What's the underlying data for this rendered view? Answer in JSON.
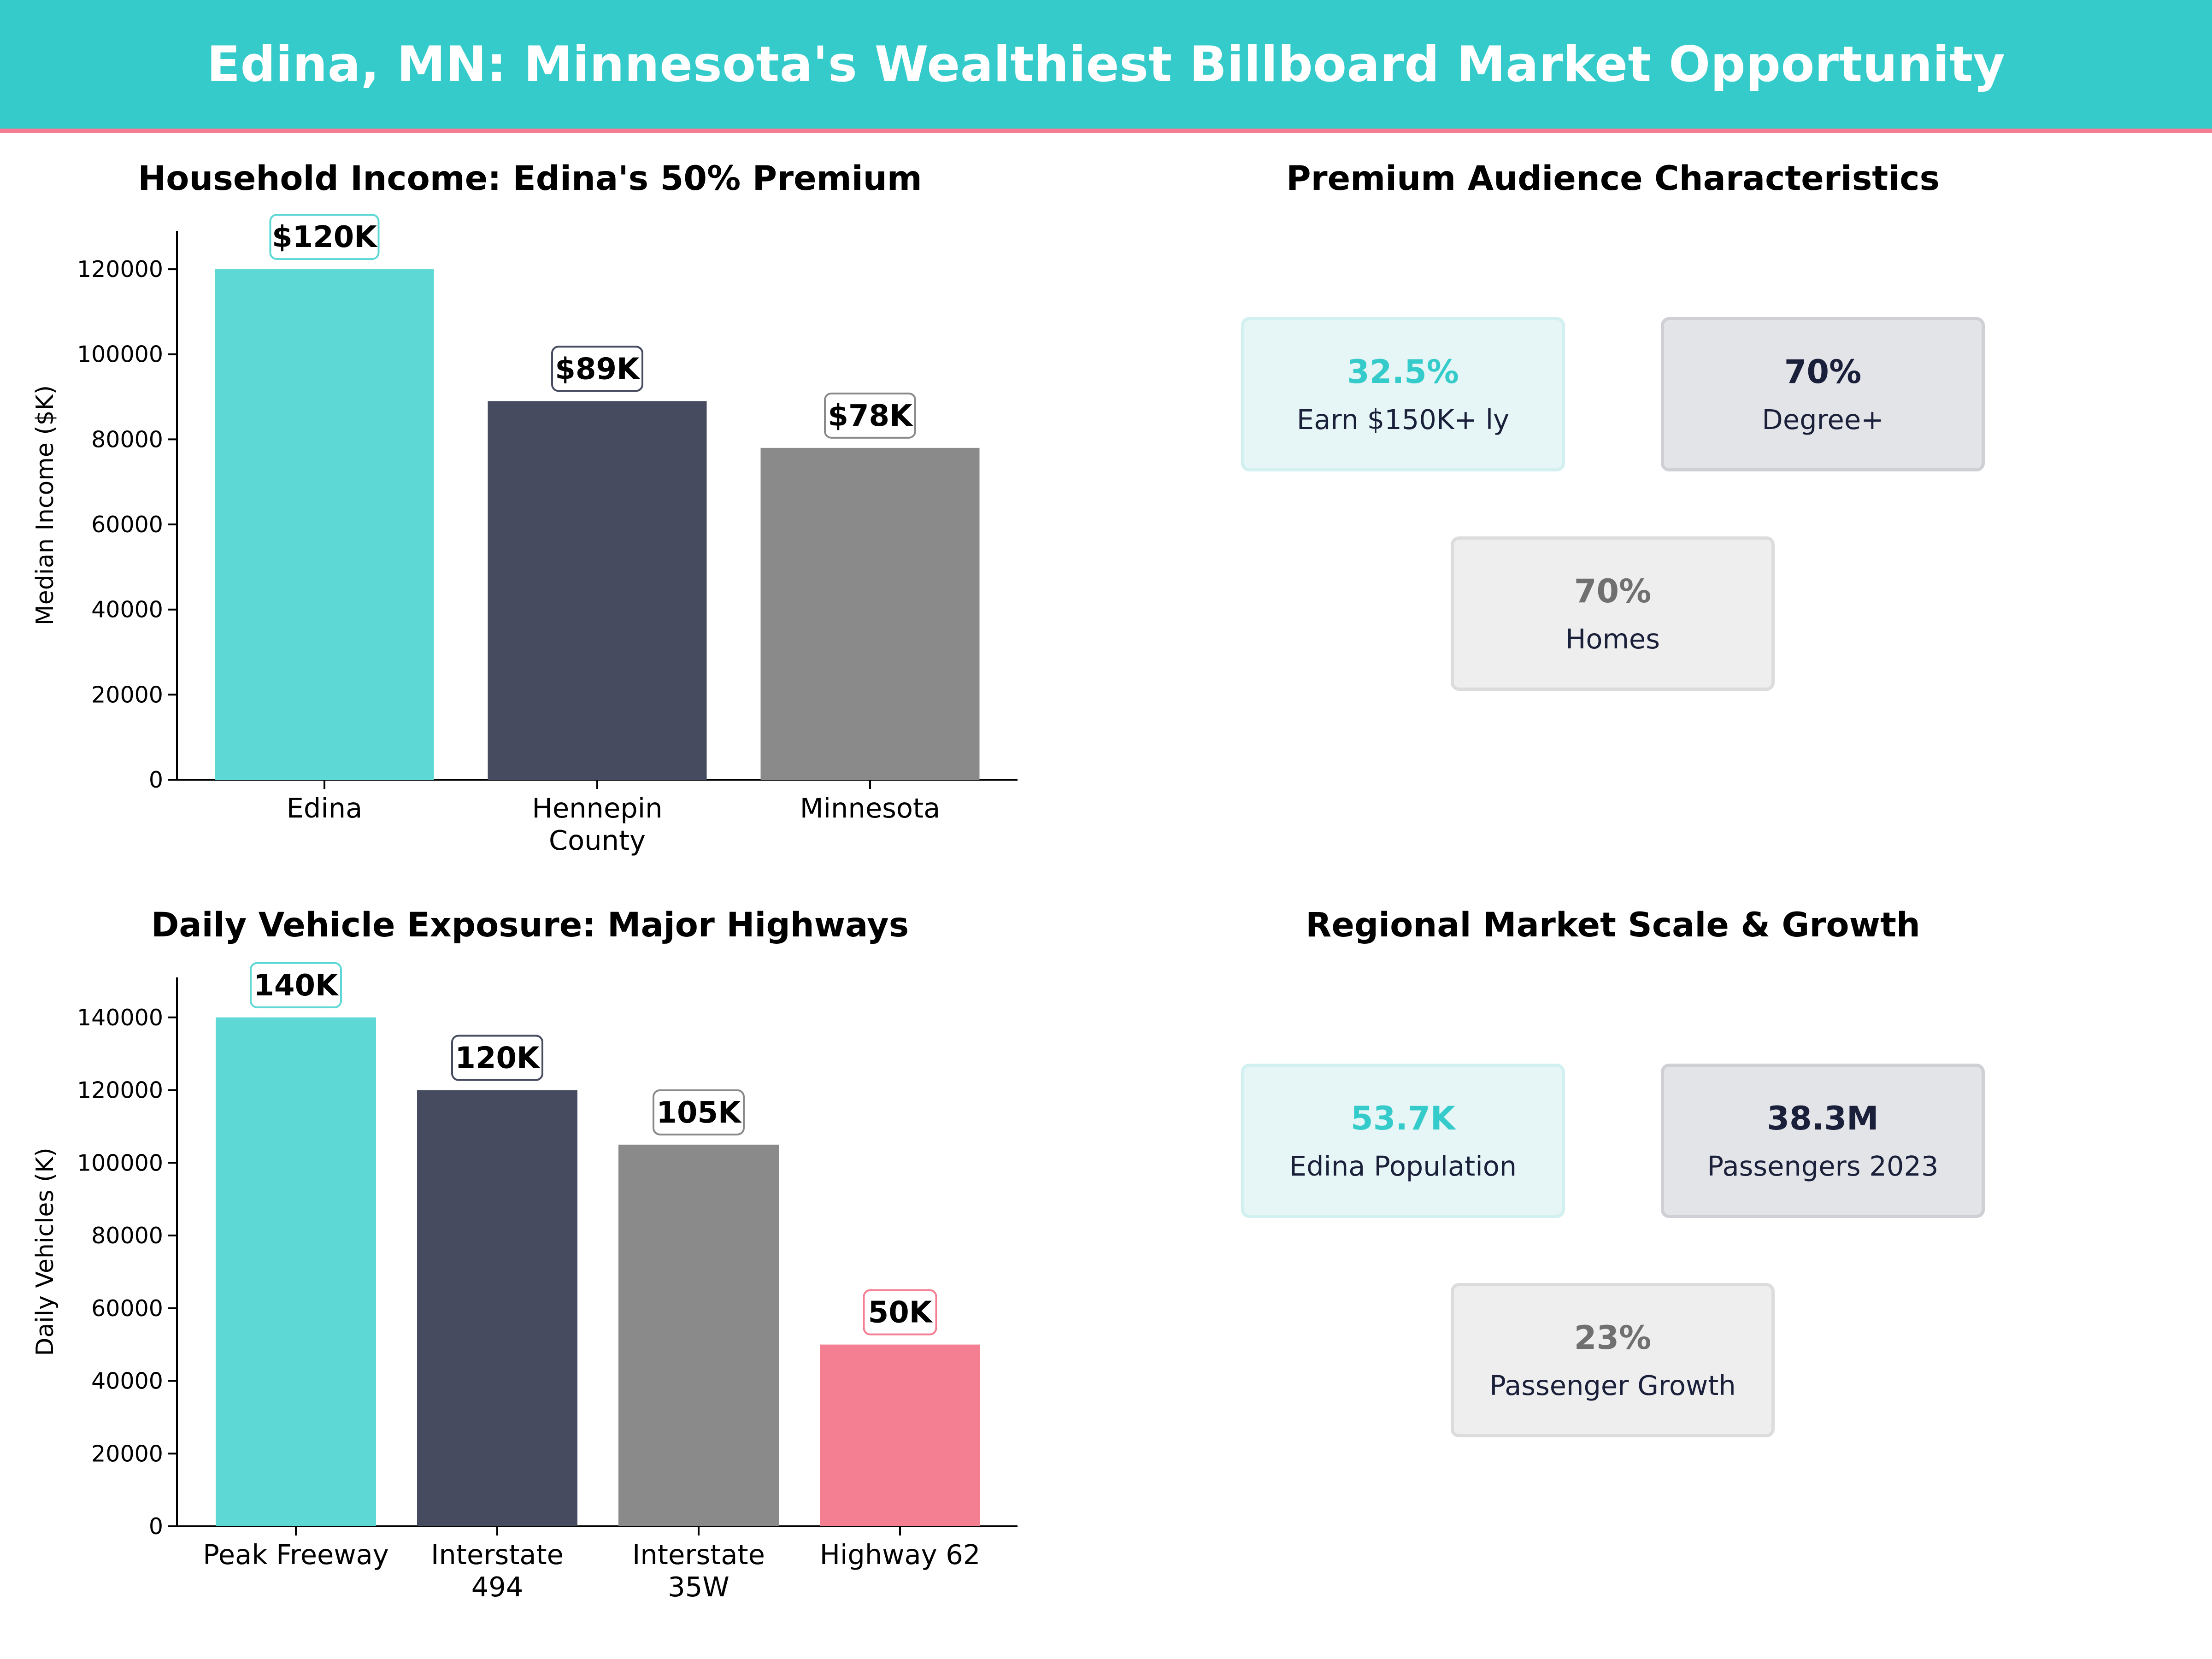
{
  "header": {
    "title": "Edina, MN: Minnesota's Wealthiest Billboard Market Opportunity"
  },
  "colors": {
    "teal": "#5dd8d4",
    "navy": "#464b60",
    "gray": "#8a8a8a",
    "pink": "#f47e92",
    "banner": "#36cbcb",
    "banner_accent": "#f47b91"
  },
  "chart_data": [
    {
      "type": "bar",
      "title": "Household Income: Edina's 50% Premium",
      "categories": [
        "Edina",
        "Hennepin\nCounty",
        "Minnesota"
      ],
      "values": [
        120000,
        89000,
        78000
      ],
      "data_labels": [
        "$120K",
        "$89K",
        "$78K"
      ],
      "bar_colors": [
        "#5dd8d4",
        "#464b60",
        "#8a8a8a"
      ],
      "label_border_colors": [
        "#5dd8d4",
        "#464b60",
        "#8a8a8a"
      ],
      "xlabel": "",
      "ylabel": "Median Income ($K)",
      "ylim": [
        0,
        129000
      ],
      "yticks": [
        0,
        20000,
        40000,
        60000,
        80000,
        100000,
        120000
      ],
      "grid": false
    },
    {
      "type": "bar",
      "title": "Daily Vehicle Exposure: Major Highways",
      "categories": [
        "Peak Freeway",
        "Interstate\n494",
        "Interstate\n35W",
        "Highway 62"
      ],
      "values": [
        140000,
        120000,
        105000,
        50000
      ],
      "data_labels": [
        "140K",
        "120K",
        "105K",
        "50K"
      ],
      "bar_colors": [
        "#5dd8d4",
        "#464b60",
        "#8a8a8a",
        "#f47e92"
      ],
      "label_border_colors": [
        "#5dd8d4",
        "#464b60",
        "#8a8a8a",
        "#f47e92"
      ],
      "xlabel": "",
      "ylabel": "Daily Vehicles (K)",
      "ylim": [
        0,
        151000
      ],
      "yticks": [
        0,
        20000,
        40000,
        60000,
        80000,
        100000,
        120000,
        140000
      ],
      "grid": false
    }
  ],
  "audience": {
    "title": "Premium Audience Characteristics",
    "cards": [
      {
        "value": "32.5%",
        "label": "Earn $150K+ ly",
        "value_color": "#36cbcb",
        "bg": "#e6f6f6",
        "border": "#d3f0f0"
      },
      {
        "value": "70%",
        "label": "Degree+",
        "value_color": "#1a1f3a",
        "bg": "#e3e4e8",
        "border": "#cfd0d5"
      },
      {
        "value": "70%",
        "label": "Homes",
        "value_color": "#707070",
        "bg": "#eeeeee",
        "border": "#dcdcdc"
      }
    ]
  },
  "market": {
    "title": "Regional Market Scale & Growth",
    "cards": [
      {
        "value": "53.7K",
        "label": "Edina Population",
        "value_color": "#36cbcb",
        "bg": "#e6f6f6",
        "border": "#d3f0f0"
      },
      {
        "value": "38.3M",
        "label": "Passengers 2023",
        "value_color": "#1a1f3a",
        "bg": "#e3e4e8",
        "border": "#cfd0d5"
      },
      {
        "value": "23%",
        "label": "Passenger Growth",
        "value_color": "#707070",
        "bg": "#eeeeee",
        "border": "#dcdcdc"
      }
    ]
  }
}
